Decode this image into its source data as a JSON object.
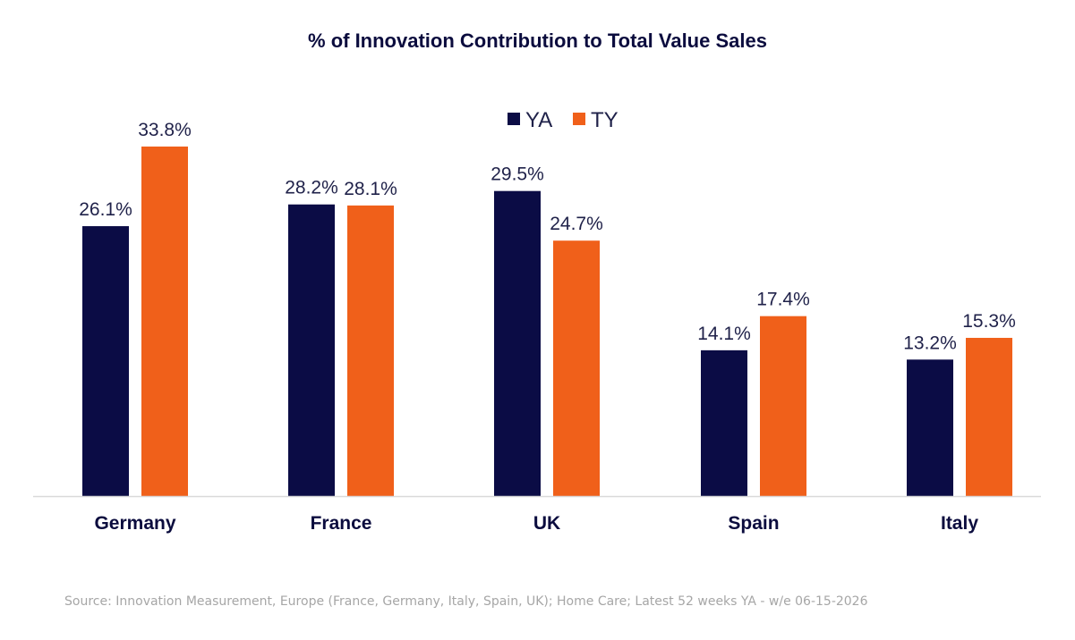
{
  "chart_data": {
    "type": "bar",
    "title": "% of Innovation Contribution to Total Value Sales",
    "categories": [
      "Germany",
      "France",
      "UK",
      "Spain",
      "Italy"
    ],
    "series": [
      {
        "name": "YA",
        "values": [
          26.1,
          28.2,
          29.5,
          14.1,
          13.2
        ],
        "labels": [
          "26.1%",
          "28.2%",
          "29.5%",
          "14.1%",
          "13.2%"
        ],
        "color": "#0b0c45"
      },
      {
        "name": "TY",
        "values": [
          33.8,
          28.1,
          24.7,
          17.4,
          15.3
        ],
        "labels": [
          "33.8%",
          "28.1%",
          "24.7%",
          "17.4%",
          "15.3%"
        ],
        "color": "#f0601a"
      }
    ],
    "ylim": [
      0,
      40
    ],
    "legend_position": "top-center",
    "grid": false,
    "xlabel": "",
    "ylabel": ""
  },
  "footer": {
    "source": "Source: Innovation Measurement, Europe (France, Germany, Italy, Spain, UK); Home Care; Latest 52 weeks YA - w/e 06-15-2026"
  },
  "colors": {
    "title": "#0b0c3e",
    "axis": "#d9d9d9",
    "label_text": "#1f2149",
    "source_text": "#a6a6a6"
  }
}
